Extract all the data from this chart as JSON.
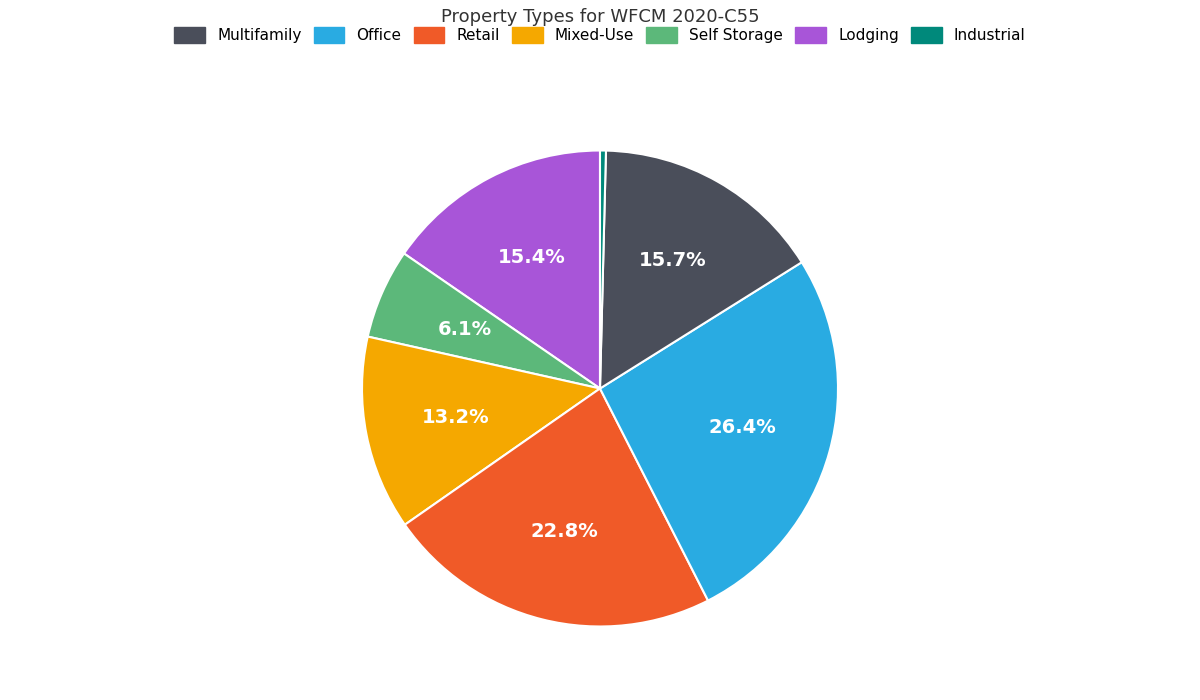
{
  "title": "Property Types for WFCM 2020-C55",
  "labels": [
    "Multifamily",
    "Office",
    "Retail",
    "Mixed-Use",
    "Self Storage",
    "Lodging",
    "Industrial"
  ],
  "pie_values": [
    15.4,
    6.1,
    13.2,
    22.8,
    26.4,
    15.7,
    0.4
  ],
  "pie_colors": [
    "#a855d8",
    "#5cb87a",
    "#f5a800",
    "#f05a28",
    "#29abe2",
    "#4a4e5a",
    "#00897b"
  ],
  "pie_labels": [
    "15.4%",
    "6.1%",
    "13.2%",
    "22.8%",
    "26.4%",
    "15.7%",
    ""
  ],
  "legend_colors": [
    "#4a4e5a",
    "#29abe2",
    "#f05a28",
    "#f5a800",
    "#5cb87a",
    "#a855d8",
    "#00897b"
  ],
  "legend_labels": [
    "Multifamily",
    "Office",
    "Retail",
    "Mixed-Use",
    "Self Storage",
    "Lodging",
    "Industrial"
  ],
  "startangle": 90,
  "label_fontsize": 14,
  "title_fontsize": 13,
  "legend_fontsize": 11,
  "background_color": "#ffffff",
  "text_color": "#ffffff"
}
